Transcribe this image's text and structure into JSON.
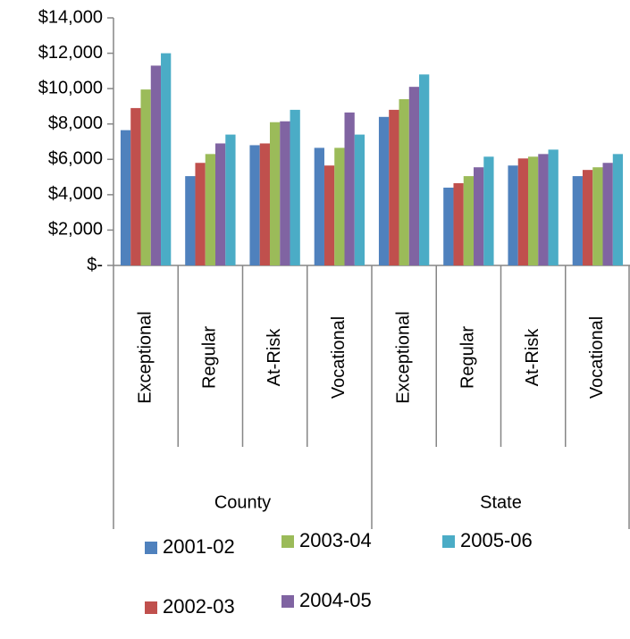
{
  "chart_data": {
    "type": "bar",
    "categories": [
      "Exceptional",
      "Regular",
      "At-Risk",
      "Vocational",
      "Exceptional",
      "Regular",
      "At-Risk",
      "Vocational"
    ],
    "category_groups": [
      "County",
      "State"
    ],
    "series": [
      {
        "name": "2001-02",
        "color": "#4f81bd",
        "values": [
          7650,
          5050,
          6800,
          6650,
          8400,
          4400,
          5650,
          5050
        ]
      },
      {
        "name": "2002-03",
        "color": "#c0504d",
        "values": [
          8900,
          5800,
          6900,
          5650,
          8800,
          4650,
          6050,
          5400
        ]
      },
      {
        "name": "2003-04",
        "color": "#9bbb59",
        "values": [
          9950,
          6300,
          8100,
          6650,
          9400,
          5050,
          6150,
          5550
        ]
      },
      {
        "name": "2004-05",
        "color": "#8064a2",
        "values": [
          11300,
          6900,
          8150,
          8650,
          10100,
          5550,
          6300,
          5800
        ]
      },
      {
        "name": "2005-06",
        "color": "#4bacc6",
        "values": [
          12000,
          7400,
          8800,
          7400,
          10800,
          6150,
          6550,
          6300
        ]
      }
    ],
    "ylim": [
      0,
      14000
    ],
    "yticks": [
      {
        "value": 0,
        "label": "$-"
      },
      {
        "value": 2000,
        "label": "$2,000"
      },
      {
        "value": 4000,
        "label": "$4,000"
      },
      {
        "value": 6000,
        "label": "$6,000"
      },
      {
        "value": 8000,
        "label": "$8,000"
      },
      {
        "value": 10000,
        "label": "$10,000"
      },
      {
        "value": 12000,
        "label": "$12,000"
      },
      {
        "value": 14000,
        "label": "$14,000"
      }
    ]
  }
}
